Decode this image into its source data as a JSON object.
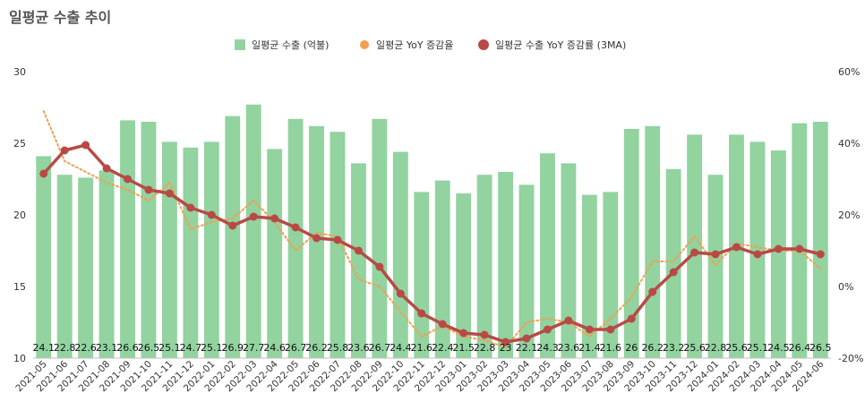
{
  "chart_data": {
    "type": "bar",
    "title": "일평균 수출 추이",
    "categories": [
      "2021-05",
      "2021-06",
      "2021-07",
      "2021-08",
      "2021-09",
      "2021-10",
      "2021-11",
      "2021-12",
      "2022-01",
      "2022-02",
      "2022-03",
      "2022-04",
      "2022-05",
      "2022-06",
      "2022-07",
      "2022-08",
      "2022-09",
      "2022-10",
      "2022-11",
      "2022-12",
      "2023-01",
      "2023-02",
      "2023-03",
      "2023-04",
      "2023-05",
      "2023-06",
      "2023-07",
      "2023-08",
      "2023-09",
      "2023-10",
      "2023-11",
      "2023-12",
      "2024-01",
      "2024-02",
      "2024-03",
      "2024-04",
      "2024-05",
      "2024-06"
    ],
    "series": [
      {
        "name": "일평균 수출 (억불)",
        "type": "bar",
        "axis": "left",
        "color": "#92d3a0",
        "values": [
          24.1,
          22.8,
          22.6,
          23.1,
          26.6,
          26.5,
          25.1,
          24.7,
          25.1,
          26.9,
          27.7,
          24.6,
          26.7,
          26.2,
          25.8,
          23.6,
          26.7,
          24.4,
          21.6,
          22.4,
          21.5,
          22.8,
          23.0,
          22.1,
          24.3,
          23.6,
          21.4,
          21.6,
          26.0,
          26.2,
          23.2,
          25.6,
          22.8,
          25.6,
          25.1,
          24.5,
          26.4,
          26.5
        ],
        "labels": [
          "24.1",
          "22.8",
          "22.6",
          "23.1",
          "26.6",
          "26.5",
          "25.1",
          "24.7",
          "25.1",
          "26.9",
          "27.7",
          "24.6",
          "26.7",
          "26.2",
          "25.8",
          "23.6",
          "26.7",
          "24.4",
          "21.6",
          "22.4",
          "21.5",
          "22.8",
          "23",
          "22.1",
          "24.3",
          "23.6",
          "21.4",
          "21.6",
          "26",
          "26.2",
          "23.2",
          "25.6",
          "22.8",
          "25.6",
          "25.1",
          "24.5",
          "26.4",
          "26.5"
        ]
      },
      {
        "name": "일평균 YoY 증감율",
        "type": "line",
        "axis": "right",
        "color": "#f0a050",
        "style": "dotted",
        "values": [
          49,
          35,
          32,
          29,
          27,
          24,
          29,
          16,
          18,
          19,
          24,
          18,
          10,
          15,
          14,
          2,
          0,
          -7,
          -14,
          -11,
          -14,
          -15,
          -17,
          -10,
          -9,
          -10,
          -14,
          -9,
          -3,
          7,
          7,
          14,
          6,
          12,
          11,
          10,
          10,
          5
        ]
      },
      {
        "name": "일평균 수출 YoY 증감률 (3MA)",
        "type": "line",
        "axis": "right",
        "color": "#b84a46",
        "markers": true,
        "values": [
          31.5,
          38,
          39.5,
          33,
          30,
          27,
          26,
          22,
          20,
          17,
          19.5,
          19,
          16.5,
          13.5,
          13,
          10,
          5.5,
          -2,
          -7.5,
          -10.5,
          -13,
          -13.5,
          -15.5,
          -14.5,
          -12,
          -9.5,
          -12,
          -12,
          -9,
          -1.5,
          4,
          9.5,
          9,
          11,
          9,
          10.5,
          10.5,
          9
        ]
      }
    ],
    "y_left": {
      "ticks": [
        "10",
        "15",
        "20",
        "25",
        "30"
      ],
      "ylim": [
        10,
        30
      ]
    },
    "y_right": {
      "ticks": [
        "-20%",
        "0%",
        "20%",
        "40%",
        "60%"
      ],
      "ylim": [
        -20,
        60
      ]
    },
    "legend": "top-center",
    "grid": false
  }
}
